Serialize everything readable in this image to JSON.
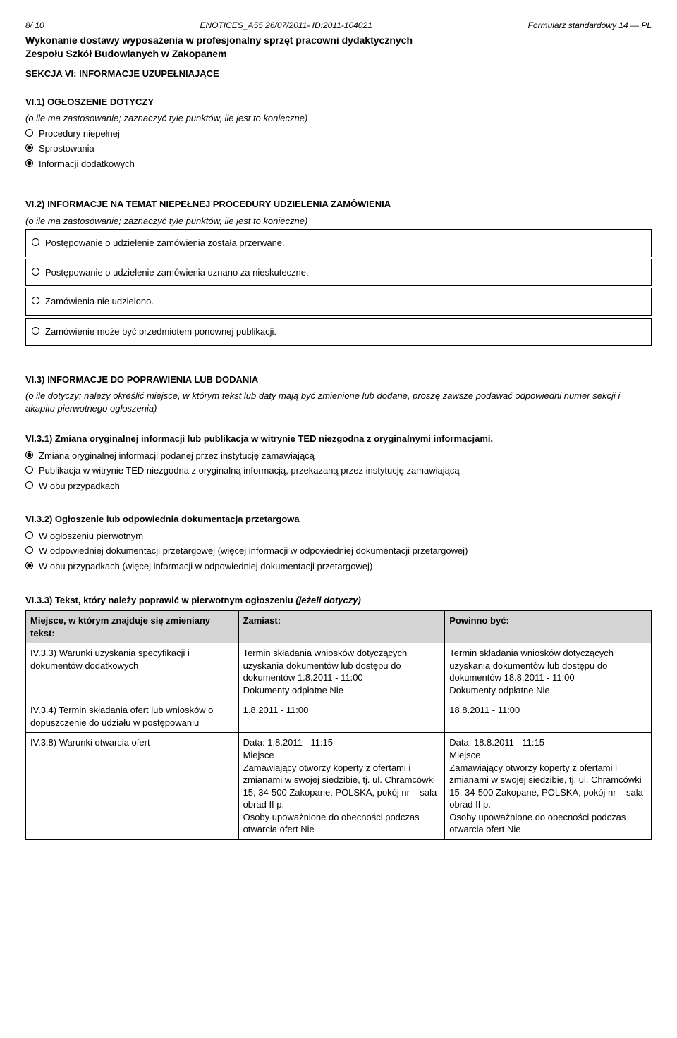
{
  "header": {
    "left": "8/ 10",
    "center": "ENOTICES_A55 26/07/2011- ID:2011-104021",
    "right": "Formularz standardowy 14 — PL"
  },
  "title_line1": "Wykonanie dostawy wyposażenia w profesjonalny sprzęt pracowni dydaktycznych",
  "title_line2": "Zespołu Szkół Budowlanych w Zakopanem",
  "sekcja_vi": "SEKCJA VI: INFORMACJE UZUPEŁNIAJĄCE",
  "vi1": {
    "heading": "VI.1) OGŁOSZENIE DOTYCZY",
    "note": "(o ile ma zastosowanie; zaznaczyć tyle punktów, ile jest to konieczne)",
    "options": [
      {
        "label": "Procedury niepełnej",
        "selected": false
      },
      {
        "label": "Sprostowania",
        "selected": true
      },
      {
        "label": "Informacji dodatkowych",
        "selected": true
      }
    ]
  },
  "vi2": {
    "heading": "VI.2) INFORMACJE NA TEMAT NIEPEŁNEJ PROCEDURY UDZIELENIA ZAMÓWIENIA",
    "note": "(o ile ma zastosowanie; zaznaczyć tyle punktów, ile jest to konieczne)",
    "options": [
      "Postępowanie o udzielenie zamówienia została przerwane.",
      "Postępowanie o udzielenie zamówienia uznano za nieskuteczne.",
      "Zamówienia nie udzielono.",
      "Zamówienie może być przedmiotem ponownej publikacji."
    ]
  },
  "vi3": {
    "heading": "VI.3) INFORMACJE DO POPRAWIENIA LUB DODANIA",
    "note": "(o ile dotyczy; należy określić miejsce, w którym tekst lub daty mają być zmienione lub dodane, proszę zawsze podawać odpowiedni numer sekcji i akapitu pierwotnego ogłoszenia)"
  },
  "vi31": {
    "heading": "VI.3.1) Zmiana oryginalnej informacji lub publikacja w witrynie TED niezgodna z oryginalnymi informacjami.",
    "options": [
      {
        "label": "Zmiana oryginalnej informacji podanej przez instytucję zamawiającą",
        "selected": true
      },
      {
        "label": "Publikacja w witrynie TED niezgodna z oryginalną informacją, przekazaną przez instytucję zamawiającą",
        "selected": false
      },
      {
        "label": "W obu przypadkach",
        "selected": false
      }
    ]
  },
  "vi32": {
    "heading": "VI.3.2) Ogłoszenie lub odpowiednia dokumentacja przetargowa",
    "options": [
      {
        "label": "W ogłoszeniu pierwotnym",
        "selected": false
      },
      {
        "label": "W odpowiedniej dokumentacji przetargowej (więcej informacji w odpowiedniej dokumentacji przetargowej)",
        "selected": false
      },
      {
        "label": "W obu przypadkach (więcej informacji w odpowiedniej dokumentacji przetargowej)",
        "selected": true
      }
    ]
  },
  "vi33": {
    "heading_bold": "VI.3.3) Tekst, który należy poprawić w pierwotnym ogłoszeniu",
    "heading_note": " (jeżeli dotyczy)",
    "columns": [
      "Miejsce, w którym znajduje się zmieniany tekst:",
      "Zamiast:",
      "Powinno być:"
    ],
    "rows": [
      {
        "c1": "IV.3.3) Warunki uzyskania specyfikacji i dokumentów dodatkowych",
        "c2": "Termin składania wniosków dotyczących uzyskania dokumentów lub dostępu do dokumentów 1.8.2011 - 11:00\nDokumenty odpłatne Nie",
        "c3": "Termin składania wniosków dotyczących uzyskania dokumentów lub dostępu do dokumentów 18.8.2011 - 11:00\nDokumenty odpłatne Nie"
      },
      {
        "c1": "IV.3.4) Termin składania ofert lub wniosków o dopuszczenie do udziału w postępowaniu",
        "c2": "1.8.2011 - 11:00",
        "c3": "18.8.2011 - 11:00"
      },
      {
        "c1": "IV.3.8) Warunki otwarcia ofert",
        "c2": "Data: 1.8.2011 - 11:15\nMiejsce\nZamawiający otworzy koperty z ofertami i zmianami w swojej siedzibie, tj. ul. Chramcówki 15, 34-500 Zakopane, POLSKA, pokój nr – sala obrad II p.\nOsoby upoważnione do obecności podczas otwarcia ofert Nie",
        "c3": "Data: 18.8.2011 - 11:15\nMiejsce\nZamawiający otworzy koperty z ofertami i zmianami w swojej siedzibie, tj. ul. Chramcówki 15, 34-500 Zakopane, POLSKA, pokój nr – sala obrad II p.\nOsoby upoważnione do obecności podczas otwarcia ofert Nie"
      }
    ]
  }
}
